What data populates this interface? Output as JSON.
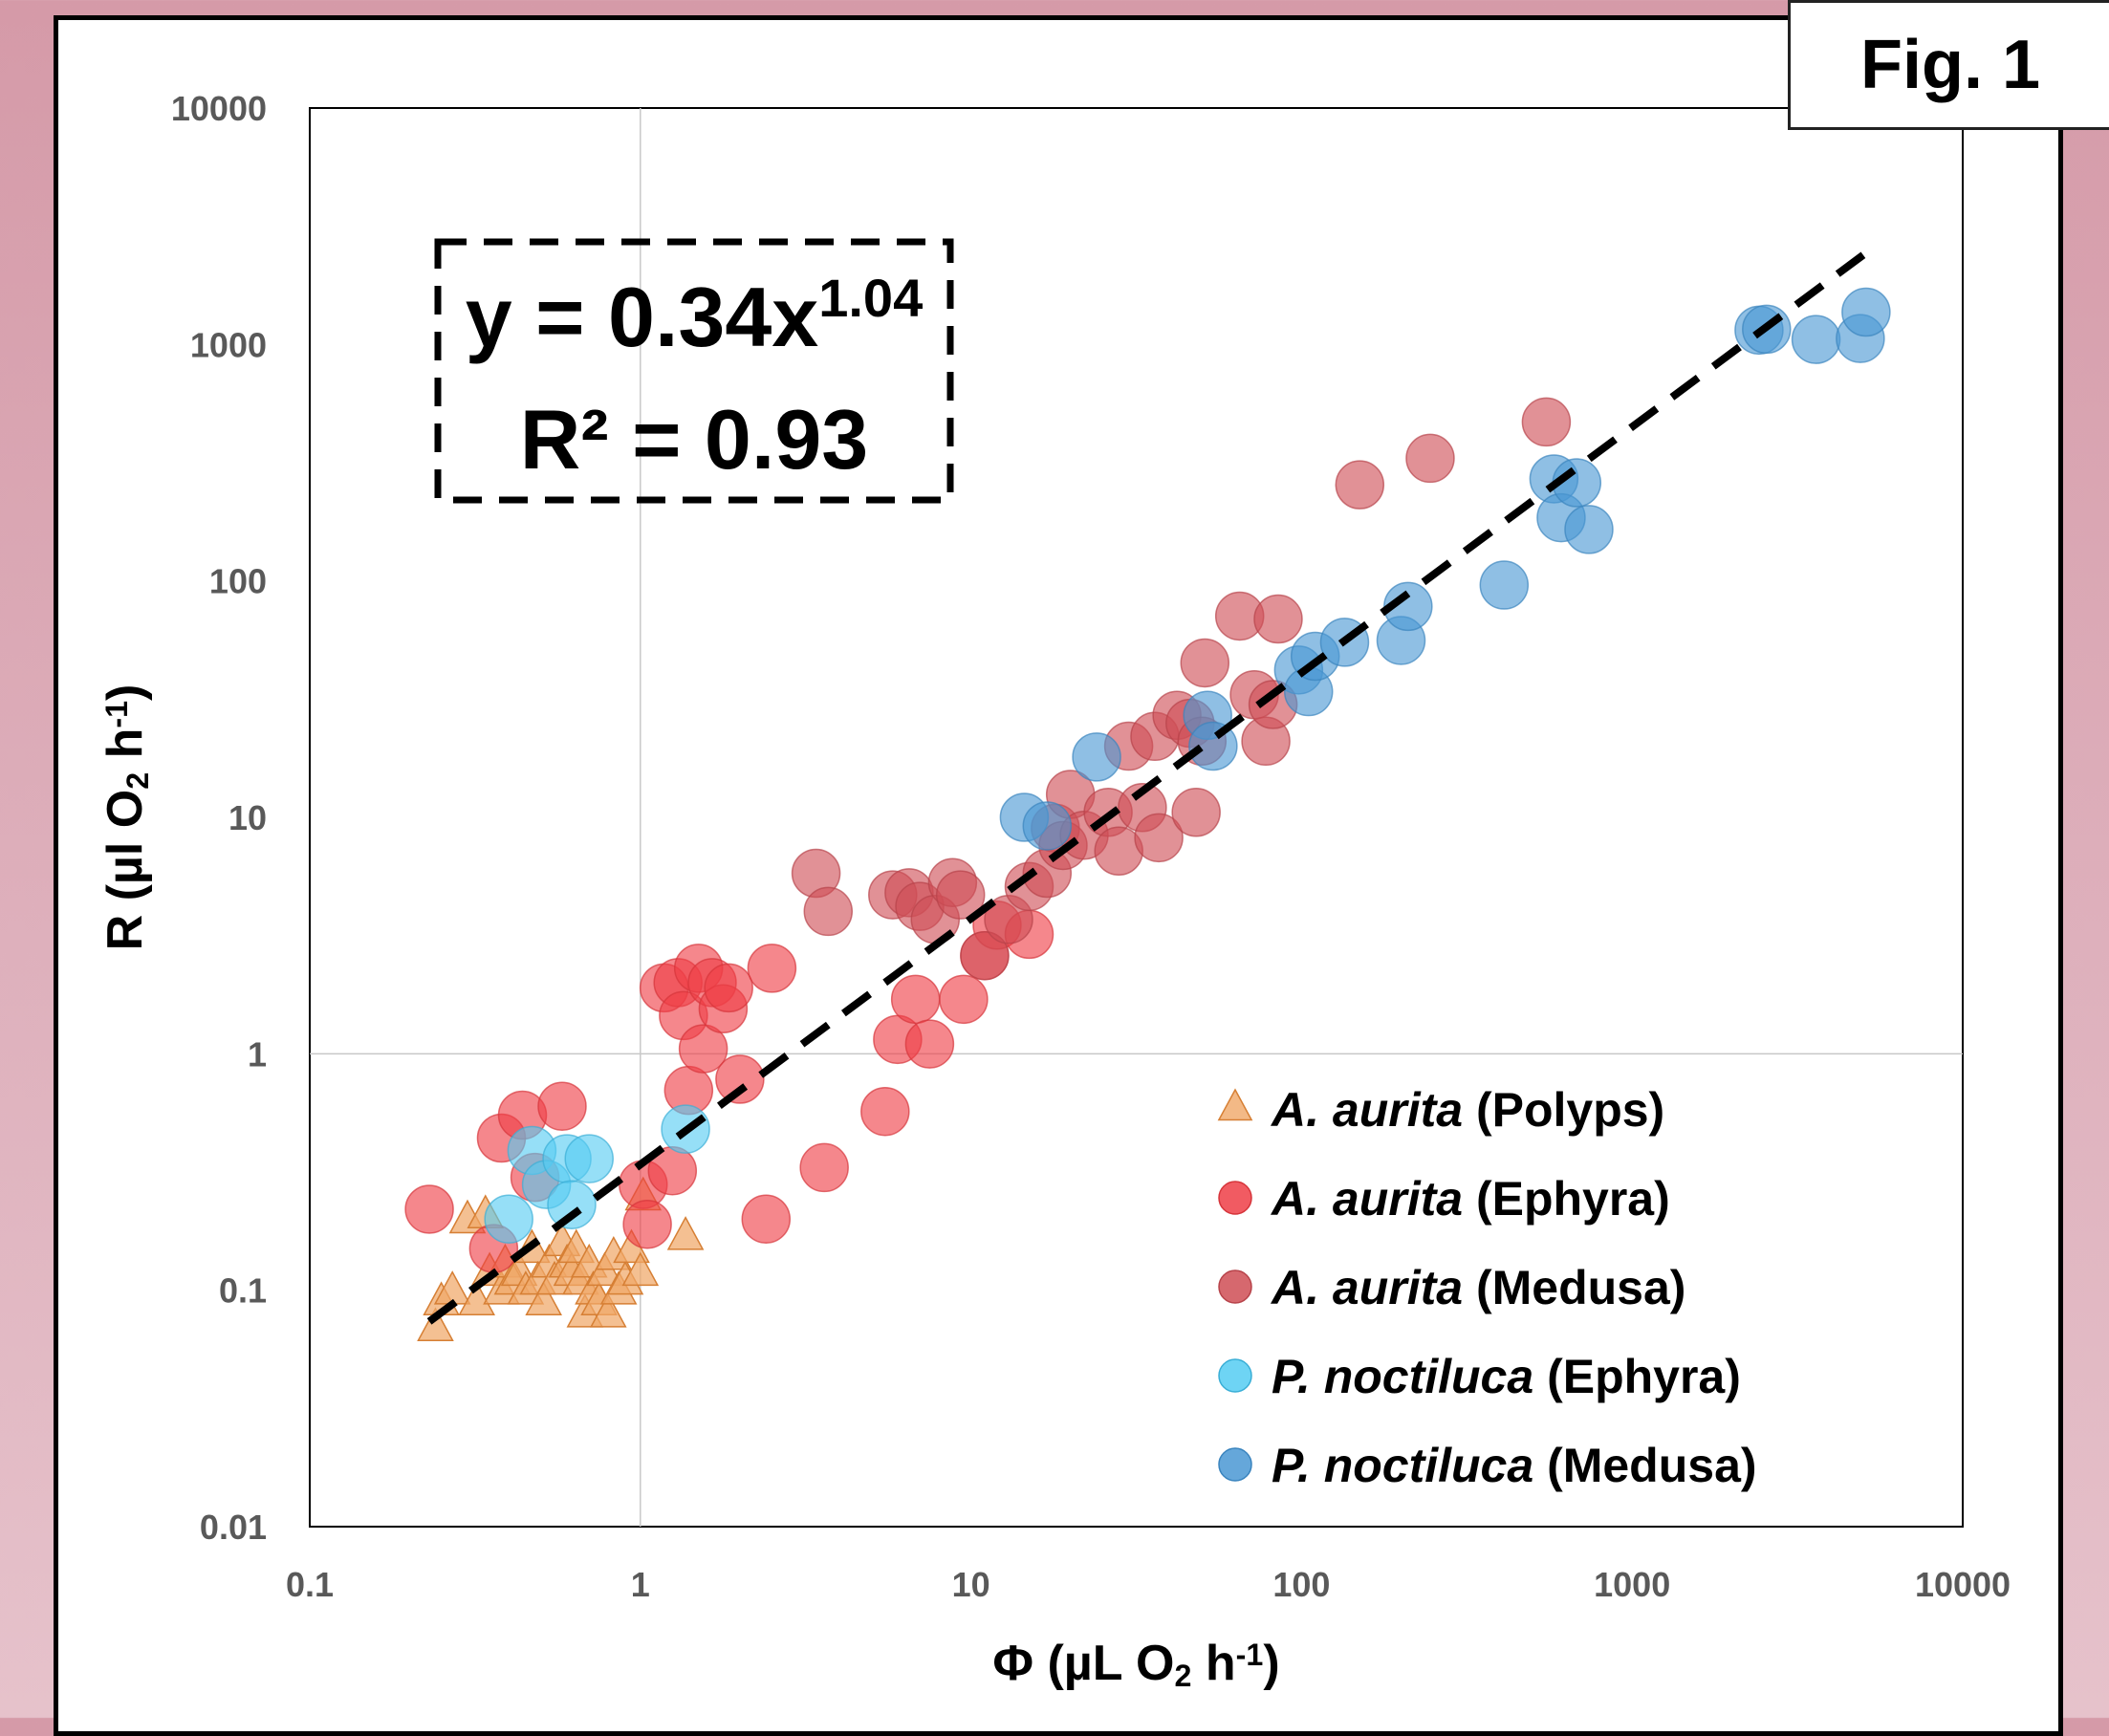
{
  "figure_label": "Fig. 1",
  "chart_data": {
    "type": "scatter",
    "x_scale": "log",
    "y_scale": "log",
    "xlim": [
      0.1,
      10000
    ],
    "ylim": [
      0.01,
      10000
    ],
    "x_ticks": [
      "0.1",
      "1",
      "10",
      "100",
      "1000",
      "10000"
    ],
    "y_ticks": [
      "0.01",
      "0.1",
      "1",
      "10",
      "100",
      "1000",
      "10000"
    ],
    "grid": "major gridlines at x=1 and y=1",
    "legend_position": "bottom-right inside plot",
    "xlabel": {
      "parts": [
        {
          "t": "Φ (µL O",
          "s": "n"
        },
        {
          "t": "2",
          "s": "sub"
        },
        {
          "t": " h",
          "s": "n"
        },
        {
          "t": "-1",
          "s": "sup"
        },
        {
          "t": ")",
          "s": "n"
        }
      ]
    },
    "ylabel": {
      "parts": [
        {
          "t": "R (µl O",
          "s": "n"
        },
        {
          "t": "2",
          "s": "sub"
        },
        {
          "t": " h",
          "s": "n"
        },
        {
          "t": "-1",
          "s": "sup"
        },
        {
          "t": ")",
          "s": "n"
        }
      ]
    },
    "equation": {
      "prefix": "y = 0.34x",
      "exponent": "1.04"
    },
    "r_squared": "R² = 0.93",
    "fit": {
      "a": 0.34,
      "b": 1.04,
      "x_range": [
        0.23,
        5000
      ],
      "style": "dashed",
      "color": "#000000"
    },
    "series": [
      {
        "name": "A. aurita (Polyps)",
        "genus": "A. aurita",
        "stage": "(Polyps)",
        "marker": "triangle",
        "color": "#f0a868",
        "stroke": "#d67f34",
        "points": [
          [
            0.24,
            0.07
          ],
          [
            0.25,
            0.09
          ],
          [
            0.27,
            0.1
          ],
          [
            0.3,
            0.2
          ],
          [
            0.32,
            0.09
          ],
          [
            0.34,
            0.21
          ],
          [
            0.35,
            0.12
          ],
          [
            0.38,
            0.1
          ],
          [
            0.39,
            0.13
          ],
          [
            0.41,
            0.11
          ],
          [
            0.43,
            0.12
          ],
          [
            0.45,
            0.1
          ],
          [
            0.47,
            0.15
          ],
          [
            0.49,
            0.11
          ],
          [
            0.51,
            0.09
          ],
          [
            0.53,
            0.13
          ],
          [
            0.55,
            0.11
          ],
          [
            0.58,
            0.16
          ],
          [
            0.6,
            0.13
          ],
          [
            0.62,
            0.12
          ],
          [
            0.64,
            0.15
          ],
          [
            0.66,
            0.11
          ],
          [
            0.68,
            0.08
          ],
          [
            0.7,
            0.13
          ],
          [
            0.72,
            0.1
          ],
          [
            0.75,
            0.09
          ],
          [
            0.78,
            0.12
          ],
          [
            0.8,
            0.08
          ],
          [
            0.83,
            0.14
          ],
          [
            0.86,
            0.1
          ],
          [
            0.9,
            0.11
          ],
          [
            0.94,
            0.15
          ],
          [
            1.0,
            0.12
          ],
          [
            1.02,
            0.25
          ],
          [
            1.37,
            0.17
          ]
        ]
      },
      {
        "name": "A. aurita (Ephyra)",
        "genus": "A. aurita",
        "stage": "(Ephyra)",
        "marker": "circle",
        "color": "#ef3e46",
        "stroke": "#d6353b",
        "points": [
          [
            0.23,
            0.22
          ],
          [
            0.36,
            0.15
          ],
          [
            0.38,
            0.44
          ],
          [
            0.44,
            0.55
          ],
          [
            0.48,
            0.3
          ],
          [
            0.58,
            0.6
          ],
          [
            1.02,
            0.28
          ],
          [
            1.05,
            0.19
          ],
          [
            1.25,
            0.32
          ],
          [
            1.18,
            1.9
          ],
          [
            1.3,
            2.0
          ],
          [
            1.35,
            1.45
          ],
          [
            1.4,
            0.7
          ],
          [
            1.5,
            2.3
          ],
          [
            1.55,
            1.05
          ],
          [
            1.65,
            2.0
          ],
          [
            1.78,
            1.55
          ],
          [
            1.85,
            1.9
          ],
          [
            2.0,
            0.78
          ],
          [
            2.4,
            0.2
          ],
          [
            2.5,
            2.3
          ],
          [
            3.6,
            0.33
          ],
          [
            5.5,
            0.57
          ],
          [
            6.0,
            1.15
          ],
          [
            6.8,
            1.7
          ],
          [
            7.5,
            1.1
          ],
          [
            9.5,
            1.7
          ],
          [
            11.0,
            2.6
          ],
          [
            12.0,
            3.5
          ],
          [
            15.0,
            3.2
          ]
        ]
      },
      {
        "name": "A. aurita (Medusa)",
        "genus": "A. aurita",
        "stage": "(Medusa)",
        "marker": "circle",
        "color": "#cf4e55",
        "stroke": "#b7434a",
        "points": [
          [
            3.4,
            5.8
          ],
          [
            3.7,
            4.0
          ],
          [
            5.8,
            4.7
          ],
          [
            6.5,
            4.8
          ],
          [
            7.0,
            4.2
          ],
          [
            7.8,
            3.7
          ],
          [
            8.8,
            5.3
          ],
          [
            9.3,
            4.7
          ],
          [
            11.0,
            2.6
          ],
          [
            13.0,
            3.7
          ],
          [
            15.0,
            5.1
          ],
          [
            17.0,
            5.8
          ],
          [
            18.0,
            9.0
          ],
          [
            19.0,
            7.6
          ],
          [
            20.0,
            12.5
          ],
          [
            22.0,
            8.4
          ],
          [
            26.0,
            10.5
          ],
          [
            28.0,
            7.2
          ],
          [
            30.0,
            20.0
          ],
          [
            33.0,
            11.0
          ],
          [
            36.0,
            22.0
          ],
          [
            37.0,
            8.2
          ],
          [
            42.0,
            27.0
          ],
          [
            46.0,
            25.0
          ],
          [
            48.0,
            10.5
          ],
          [
            50.0,
            21.0
          ],
          [
            51.0,
            45.0
          ],
          [
            65.0,
            71.0
          ],
          [
            72.0,
            33.0
          ],
          [
            78.0,
            21.0
          ],
          [
            82.0,
            30.0
          ],
          [
            85.0,
            69.0
          ],
          [
            150.0,
            255.0
          ],
          [
            245.0,
            330.0
          ],
          [
            550.0,
            470.0
          ]
        ]
      },
      {
        "name": "P. noctiluca (Ephyra)",
        "genus": "P. noctiluca",
        "stage": "(Ephyra)",
        "marker": "circle",
        "color": "#55ccf2",
        "stroke": "#3aaed6",
        "points": [
          [
            0.4,
            0.2
          ],
          [
            0.47,
            0.39
          ],
          [
            0.52,
            0.28
          ],
          [
            0.6,
            0.36
          ],
          [
            0.62,
            0.23
          ],
          [
            0.7,
            0.36
          ],
          [
            1.37,
            0.48
          ]
        ]
      },
      {
        "name": "P. noctiluca (Medusa)",
        "genus": "P. noctiluca",
        "stage": "(Medusa)",
        "marker": "circle",
        "color": "#4a98d4",
        "stroke": "#3a84be",
        "points": [
          [
            14.5,
            10.0
          ],
          [
            17.0,
            9.2
          ],
          [
            24.0,
            18.0
          ],
          [
            52.0,
            27.0
          ],
          [
            54.0,
            20.0
          ],
          [
            98.0,
            42.0
          ],
          [
            105.0,
            34.0
          ],
          [
            110.0,
            48.0
          ],
          [
            135.0,
            55.0
          ],
          [
            200.0,
            56.0
          ],
          [
            210.0,
            78.0
          ],
          [
            410.0,
            96.0
          ],
          [
            580.0,
            270.0
          ],
          [
            610.0,
            185.0
          ],
          [
            680.0,
            260.0
          ],
          [
            740.0,
            165.0
          ],
          [
            2420.0,
            1150.0
          ],
          [
            2550.0,
            1160.0
          ],
          [
            3600.0,
            1050.0
          ],
          [
            4900.0,
            1060.0
          ],
          [
            5100.0,
            1370.0
          ]
        ]
      }
    ]
  }
}
